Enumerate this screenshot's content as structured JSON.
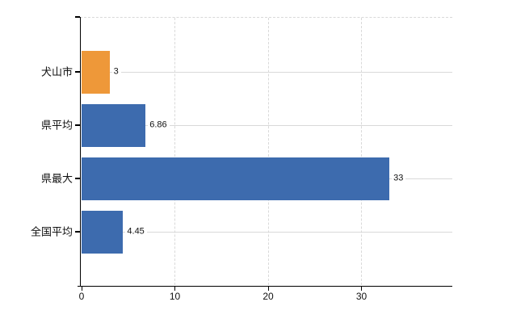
{
  "chart_data": {
    "type": "bar",
    "orientation": "horizontal",
    "title": "",
    "categories": [
      "犬山市",
      "県平均",
      "県最大",
      "全国平均"
    ],
    "values": [
      3,
      6.86,
      33,
      4.45
    ],
    "value_labels": [
      "3",
      "6.86",
      "33",
      "4.45"
    ],
    "bar_colors": [
      "#ee9839",
      "#3d6bae",
      "#3d6bae",
      "#3d6bae"
    ],
    "x_ticks": [
      "0",
      "10",
      "20",
      "30"
    ],
    "x_tick_values": [
      0,
      10,
      20,
      30
    ],
    "xlim": [
      0,
      39.7
    ],
    "grid": true,
    "legend": "none",
    "colors": {
      "accent_orange": "#ee9839",
      "accent_blue": "#3d6bae",
      "gridline": "#d9d9d9",
      "axis": "#000000",
      "text": "#111111",
      "background": "#ffffff"
    }
  }
}
